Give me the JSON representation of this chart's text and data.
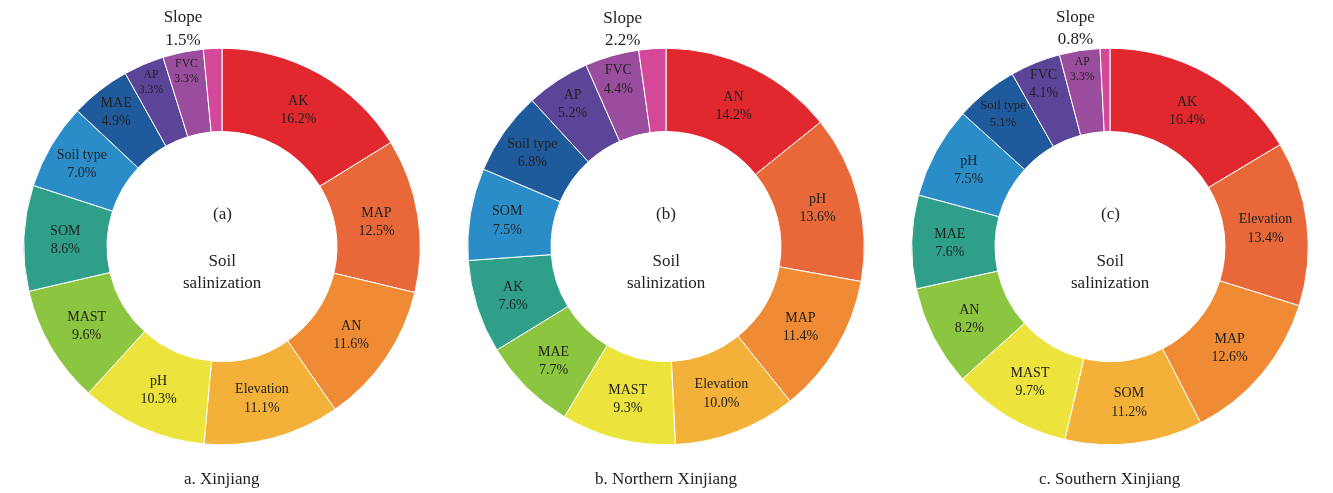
{
  "chart_data": [
    {
      "type": "donut",
      "title": "a. Xinjiang",
      "annotations": [
        "(a)",
        "Soil salinization"
      ],
      "legend": false,
      "categories": [
        "AK",
        "MAP",
        "AN",
        "Elevation",
        "pH",
        "MAST",
        "SOM",
        "Soil type",
        "MAE",
        "AP",
        "FVC",
        "Slope"
      ],
      "values": [
        16.2,
        12.5,
        11.6,
        11.1,
        10.3,
        9.6,
        8.6,
        7.0,
        4.9,
        3.3,
        3.3,
        1.5
      ],
      "value_labels": [
        "16.2%",
        "12.5%",
        "11.6%",
        "11.1%",
        "10.3%",
        "9.6%",
        "8.6%",
        "7.0%",
        "4.9%",
        "3.3%",
        "3.3%",
        "1.5%"
      ],
      "colors": [
        "#e2282f",
        "#e8683a",
        "#ef8a35",
        "#f4b13a",
        "#ece43c",
        "#8cc540",
        "#2f9f89",
        "#2a8dc7",
        "#1f5a9d",
        "#5b4598",
        "#9a4c9d",
        "#d4489a"
      ]
    },
    {
      "type": "donut",
      "title": "b. Northern Xinjiang",
      "annotations": [
        "(b)",
        "Soil salinization"
      ],
      "legend": false,
      "categories": [
        "AN",
        "pH",
        "MAP",
        "Elevation",
        "MAST",
        "MAE",
        "AK",
        "SOM",
        "Soil type",
        "AP",
        "FVC",
        "Slope"
      ],
      "values": [
        14.2,
        13.6,
        11.4,
        10.0,
        9.3,
        7.7,
        7.6,
        7.5,
        6.8,
        5.2,
        4.4,
        2.2
      ],
      "value_labels": [
        "14.2%",
        "13.6%",
        "11.4%",
        "10.0%",
        "9.3%",
        "7.7%",
        "7.6%",
        "7.5%",
        "6.8%",
        "5.2%",
        "4.4%",
        "2.2%"
      ],
      "colors": [
        "#e2282f",
        "#e8683a",
        "#ef8a35",
        "#f4b13a",
        "#ece43c",
        "#8cc540",
        "#2f9f89",
        "#2a8dc7",
        "#1f5a9d",
        "#5b4598",
        "#9a4c9d",
        "#d4489a"
      ]
    },
    {
      "type": "donut",
      "title": "c. Southern Xinjiang",
      "annotations": [
        "(c)",
        "Soil salinization"
      ],
      "legend": false,
      "categories": [
        "AK",
        "Elevation",
        "MAP",
        "SOM",
        "MAST",
        "AN",
        "MAE",
        "pH",
        "Soil type",
        "FVC",
        "AP",
        "Slope"
      ],
      "values": [
        16.4,
        13.4,
        12.6,
        11.2,
        9.7,
        8.2,
        7.6,
        7.5,
        5.1,
        4.1,
        3.3,
        0.8
      ],
      "value_labels": [
        "16.4%",
        "13.4%",
        "12.6%",
        "11.2%",
        "9.7%",
        "8.2%",
        "7.6%",
        "7.5%",
        "5.1%",
        "4.1%",
        "3.3%",
        "0.8%"
      ],
      "colors": [
        "#e2282f",
        "#e8683a",
        "#ef8a35",
        "#f4b13a",
        "#ece43c",
        "#8cc540",
        "#2f9f89",
        "#2a8dc7",
        "#1f5a9d",
        "#5b4598",
        "#9a4c9d",
        "#d4489a"
      ]
    }
  ]
}
